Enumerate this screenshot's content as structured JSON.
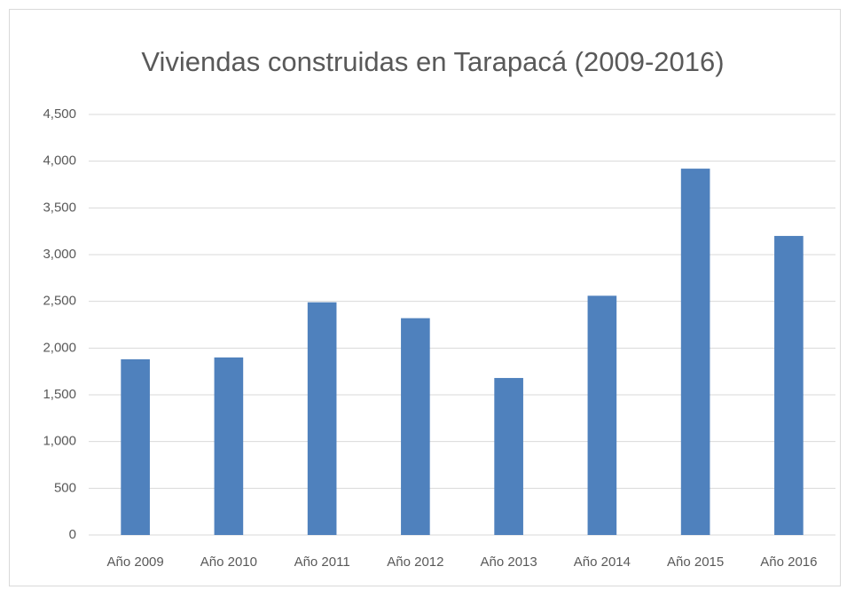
{
  "chart_data": {
    "type": "bar",
    "title": "Viviendas construidas en Tarapacá (2009-2016)",
    "categories": [
      "Año 2009",
      "Año 2010",
      "Año 2011",
      "Año 2012",
      "Año 2013",
      "Año 2014",
      "Año 2015",
      "Año 2016"
    ],
    "values": [
      1880,
      1900,
      2490,
      2320,
      1680,
      2560,
      3920,
      3200
    ],
    "color": "#4f81bd",
    "ylim": [
      0,
      4500
    ],
    "yticks": [
      0,
      500,
      {
        "value": 1000,
        "label": "1,000"
      },
      {
        "value": 1500,
        "label": "1,500"
      },
      {
        "value": 2000,
        "label": "2,000"
      },
      {
        "value": 2500,
        "label": "2,500"
      },
      {
        "value": 3000,
        "label": "3,000"
      },
      {
        "value": 3500,
        "label": "3,500"
      },
      {
        "value": 4000,
        "label": "4,000"
      },
      {
        "value": 4500,
        "label": "4,500"
      }
    ],
    "grid": true
  }
}
